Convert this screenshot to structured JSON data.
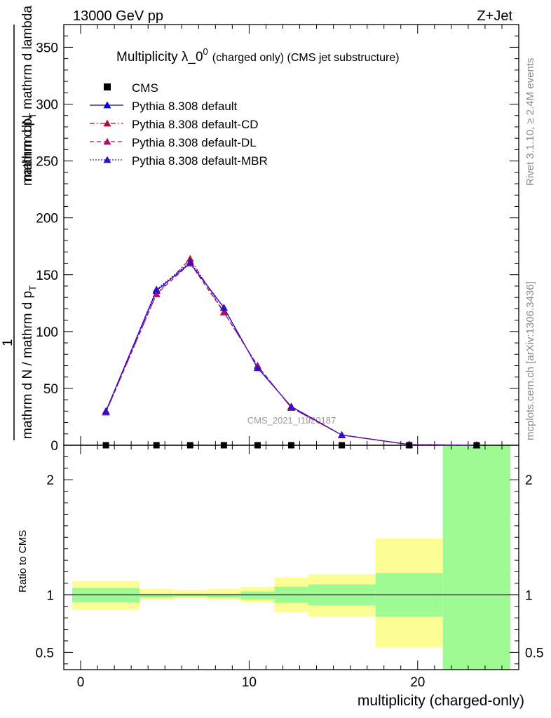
{
  "header": {
    "energy_label": "13000 GeV pp",
    "process_label": "Z+Jet"
  },
  "side_labels": {
    "rivet": "Rivet 3.1.10, ≥ 2.4M events",
    "mcplots": "mcplots.cern.ch [arXiv:1306.3436]"
  },
  "watermark": "CMS_2021_I1920187",
  "chart_data": [
    {
      "type": "line",
      "panel": "main",
      "title": "Multiplicity λ_0⁰ (charged only) (CMS jet substructure)",
      "title_main": "Multiplicity λ_0",
      "title_sup": "0",
      "title_suffix": "(charged only) (CMS jet substructure)",
      "ylabel_numerator": "1",
      "ylabel_numerator2": "mathrm dN",
      "ylabel_den1": "mathrm d N / mathrm d p",
      "ylabel_den1_sub": "T",
      "ylabel_den2": "mathrm d p",
      "ylabel_den2_sub": "T",
      "ylabel_den3": "mathrm d lambda",
      "ylabel_mid": "mathrm d N / mathrm d p",
      "xlim": [
        -1,
        26
      ],
      "ylim": [
        0,
        370
      ],
      "yticks": [
        0,
        50,
        100,
        150,
        200,
        250,
        300,
        350
      ],
      "legend_position": "top-left",
      "cms_points": {
        "name": "CMS",
        "x": [
          1.5,
          4.5,
          6.5,
          8.5,
          10.5,
          12.5,
          15.5,
          19.5,
          23.5
        ],
        "y": [
          0,
          0,
          0,
          0,
          0,
          0,
          0,
          0,
          0
        ],
        "color": "#000000"
      },
      "series": [
        {
          "name": "Pythia 8.308 default",
          "style": "solid",
          "color": "#0000e0",
          "x": [
            1.5,
            4.5,
            6.5,
            8.5,
            10.5,
            12.5,
            15.5,
            19.5,
            23.5
          ],
          "y": [
            30,
            136,
            160,
            121,
            68,
            34,
            9,
            0.6,
            0
          ]
        },
        {
          "name": "Pythia 8.308 default-CD",
          "style": "dashdot",
          "color": "#b0103a",
          "x": [
            1.5,
            4.5,
            6.5,
            8.5,
            10.5,
            12.5,
            15.5,
            19.5,
            23.5
          ],
          "y": [
            29,
            133,
            164,
            117,
            70,
            33,
            9,
            0.6,
            0
          ]
        },
        {
          "name": "Pythia 8.308 default-DL",
          "style": "dashed",
          "color": "#b0106a",
          "x": [
            1.5,
            4.5,
            6.5,
            8.5,
            10.5,
            12.5,
            15.5,
            19.5,
            23.5
          ],
          "y": [
            29,
            133,
            160,
            117,
            70,
            33,
            9,
            0.6,
            0
          ]
        },
        {
          "name": "Pythia 8.308 default-MBR",
          "style": "dotted",
          "color": "#3010c0",
          "x": [
            1.5,
            4.5,
            6.5,
            8.5,
            10.5,
            12.5,
            15.5,
            19.5,
            23.5
          ],
          "y": [
            30,
            137,
            161,
            121,
            68,
            34,
            9,
            0.6,
            0
          ]
        }
      ]
    },
    {
      "type": "area",
      "panel": "ratio",
      "ylabel": "Ratio to CMS",
      "xlabel": "multiplicity (charged-only)",
      "ylim": [
        0.35,
        2.3
      ],
      "yticks": [
        0.5,
        1,
        2
      ],
      "ytick_labels": [
        "0.5",
        "1",
        "2"
      ],
      "xticks": [
        0,
        10,
        20
      ],
      "reference_line": 1,
      "bins": [
        {
          "x_low": -0.5,
          "x_high": 3.5,
          "inner": [
            0.935,
            1.06
          ],
          "outer": [
            0.87,
            1.12
          ]
        },
        {
          "x_low": 3.5,
          "x_high": 5.5,
          "inner": [
            0.975,
            1.01
          ],
          "outer": [
            0.955,
            1.05
          ]
        },
        {
          "x_low": 5.5,
          "x_high": 7.5,
          "inner": [
            0.985,
            1.01
          ],
          "outer": [
            0.97,
            1.04
          ]
        },
        {
          "x_low": 7.5,
          "x_high": 9.5,
          "inner": [
            0.975,
            1.01
          ],
          "outer": [
            0.955,
            1.05
          ]
        },
        {
          "x_low": 9.5,
          "x_high": 11.5,
          "inner": [
            0.96,
            1.03
          ],
          "outer": [
            0.935,
            1.07
          ]
        },
        {
          "x_low": 11.5,
          "x_high": 13.5,
          "inner": [
            0.93,
            1.07
          ],
          "outer": [
            0.85,
            1.15
          ]
        },
        {
          "x_low": 13.5,
          "x_high": 17.5,
          "inner": [
            0.91,
            1.09
          ],
          "outer": [
            0.81,
            1.18
          ]
        },
        {
          "x_low": 17.5,
          "x_high": 21.5,
          "inner": [
            0.81,
            1.19
          ],
          "outer": [
            0.545,
            1.49
          ]
        },
        {
          "x_low": 21.5,
          "x_high": 25.5,
          "inner": [
            0.35,
            2.3
          ],
          "outer": [
            0.35,
            2.3
          ]
        }
      ],
      "colors": {
        "inner": "#9efa92",
        "outer": "#fdfd96"
      }
    }
  ]
}
